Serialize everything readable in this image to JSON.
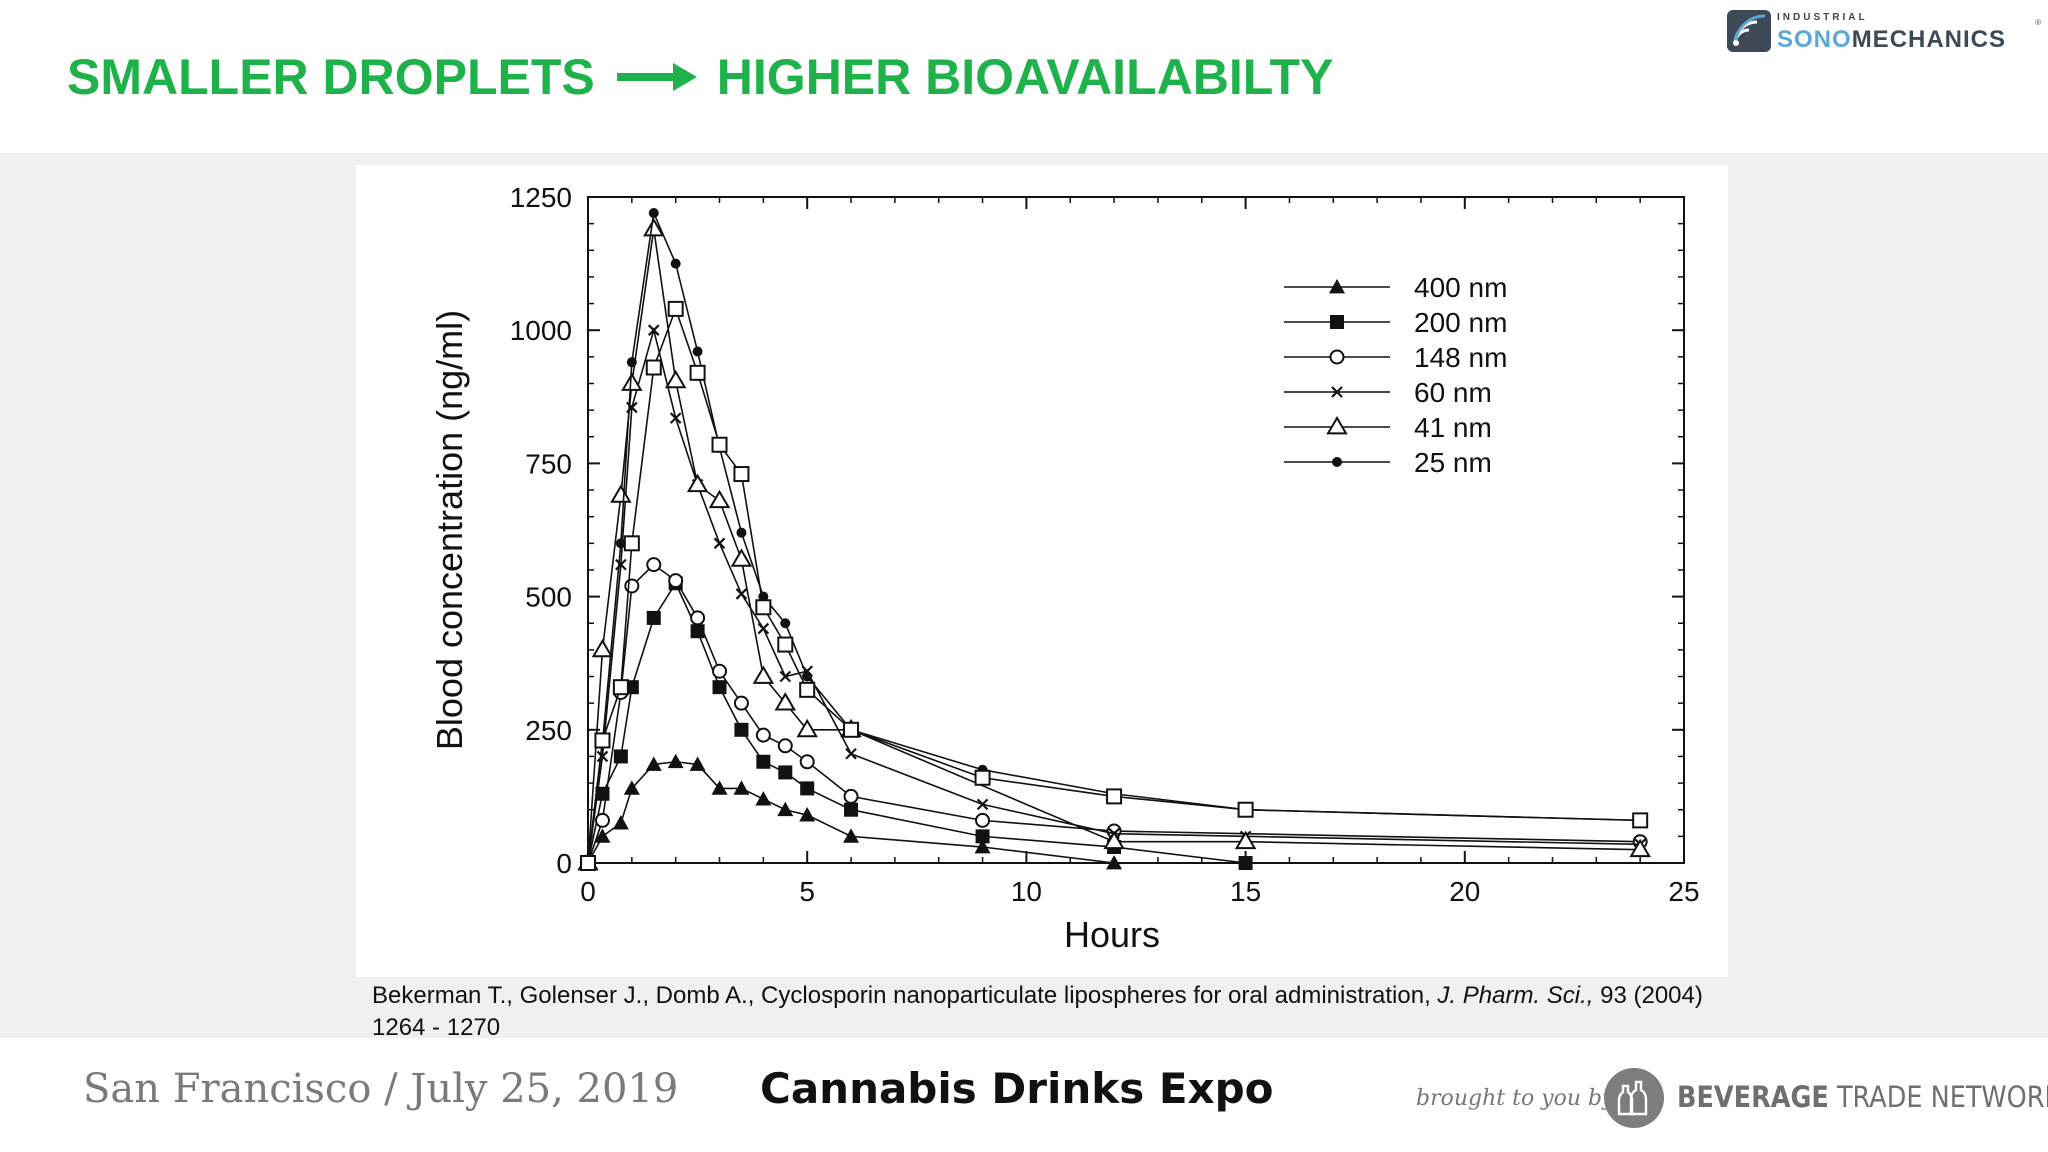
{
  "slide": {
    "title_left": "SMALLER DROPLETS",
    "title_right": "HIGHER BIOAVAILABILTY",
    "title_color": "#1fb24b",
    "arrow_icon": "right-arrow-icon"
  },
  "logo": {
    "small_text": "INDUSTRIAL",
    "name_part1": "SONO",
    "name_part2": "MECHANICS",
    "registered": "®"
  },
  "citation": {
    "text_plain": "Bekerman T., Golenser J., Domb A., Cyclosporin nanoparticulate lipospheres for oral administration, ",
    "journal": "J. Pharm. Sci.,",
    "text_after": " 93 (2004) 1264 - 1270"
  },
  "footer": {
    "location_date": "San Francisco / July 25, 2019",
    "event": "Cannabis Drinks Expo",
    "brought_by": "brought to you by",
    "sponsor_bold": "BEVERAGE",
    "sponsor_rest": " TRADE NETWORK"
  },
  "chart_data": {
    "type": "line",
    "xlabel": "Hours",
    "ylabel": "Blood concentration (ng/ml)",
    "xlim": [
      0,
      25
    ],
    "ylim": [
      0,
      1250
    ],
    "xticks": [
      0,
      5,
      10,
      15,
      20,
      25
    ],
    "yticks": [
      0,
      250,
      500,
      750,
      1000,
      1250
    ],
    "grid": false,
    "legend_position": "top-right",
    "series": [
      {
        "name": "400 nm",
        "marker": "triangle-filled",
        "x": [
          0,
          0.33,
          0.75,
          1,
          1.5,
          2,
          2.5,
          3,
          3.5,
          4,
          4.5,
          5,
          6,
          9,
          12
        ],
        "y": [
          0,
          50,
          75,
          140,
          185,
          190,
          185,
          140,
          140,
          120,
          100,
          90,
          50,
          30,
          0
        ]
      },
      {
        "name": "200 nm",
        "marker": "square-filled",
        "x": [
          0,
          0.33,
          0.75,
          1,
          1.5,
          2,
          2.5,
          3,
          3.5,
          4,
          4.5,
          5,
          6,
          9,
          12,
          15
        ],
        "y": [
          0,
          130,
          200,
          330,
          460,
          525,
          435,
          330,
          250,
          190,
          170,
          140,
          100,
          50,
          30,
          0
        ]
      },
      {
        "name": "148 nm",
        "marker": "circle-open",
        "x": [
          0,
          0.33,
          0.75,
          1,
          1.5,
          2,
          2.5,
          3,
          3.5,
          4,
          4.5,
          5,
          6,
          9,
          12,
          24
        ],
        "y": [
          0,
          80,
          320,
          520,
          560,
          530,
          460,
          360,
          300,
          240,
          220,
          190,
          125,
          80,
          60,
          40
        ]
      },
      {
        "name": "60 nm",
        "marker": "cross",
        "x": [
          0,
          0.33,
          0.75,
          1,
          1.5,
          2,
          2.5,
          3,
          3.5,
          4,
          4.5,
          5,
          6,
          9,
          12,
          15,
          24
        ],
        "y": [
          0,
          200,
          560,
          855,
          1000,
          835,
          710,
          600,
          505,
          440,
          350,
          360,
          205,
          110,
          55,
          50,
          35
        ]
      },
      {
        "name": "41 nm",
        "marker": "triangle-open",
        "x": [
          0,
          0.33,
          0.75,
          1,
          1.5,
          2,
          2.5,
          3,
          3.5,
          4,
          4.5,
          5,
          6,
          12,
          15,
          24
        ],
        "y": [
          0,
          400,
          690,
          900,
          1190,
          905,
          710,
          680,
          570,
          350,
          300,
          250,
          250,
          40,
          40,
          25
        ]
      },
      {
        "name": "25 nm",
        "marker": "dot-filled",
        "x": [
          0,
          0.33,
          0.75,
          1,
          1.5,
          2,
          2.5,
          3,
          3.5,
          4,
          4.5,
          5,
          6,
          9,
          12,
          15,
          24
        ],
        "y": [
          0,
          225,
          600,
          940,
          1220,
          1125,
          960,
          780,
          620,
          500,
          450,
          350,
          250,
          175,
          130,
          100,
          80
        ]
      },
      {
        "name": "",
        "marker": "square-open",
        "x": [
          0,
          0.33,
          0.75,
          1,
          1.5,
          2,
          2.5,
          3,
          3.5,
          4,
          4.5,
          5,
          6,
          9,
          12,
          15,
          24
        ],
        "y": [
          0,
          230,
          330,
          600,
          930,
          1040,
          920,
          785,
          730,
          480,
          410,
          325,
          250,
          160,
          125,
          100,
          80
        ]
      }
    ]
  }
}
